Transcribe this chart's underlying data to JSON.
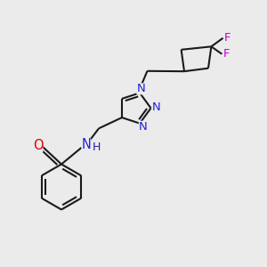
{
  "bg_color": "#ebebeb",
  "bond_color": "#1a1a1a",
  "N_color": "#2020dd",
  "O_color": "#dd0000",
  "F_color": "#cc00cc",
  "H_color": "#2020aa",
  "line_width": 1.5,
  "font_size": 9.5,
  "figsize": [
    3.0,
    3.0
  ],
  "dpi": 100,
  "xlim": [
    0,
    10
  ],
  "ylim": [
    0,
    10
  ]
}
